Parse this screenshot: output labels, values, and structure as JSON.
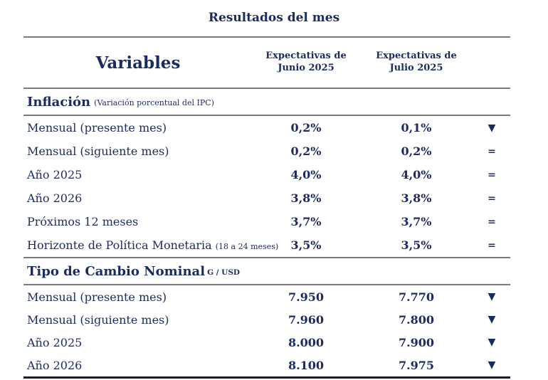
{
  "title": "Resultados del mes",
  "colors": {
    "navy": "#1c2b5f",
    "line_gray": "#7a7a7a",
    "line_dark": "#151b36"
  },
  "header": {
    "variables": "Variables",
    "junio": {
      "line1": "Expectativas de",
      "line2": "Junio 2025"
    },
    "julio": {
      "line1": "Expectativas de",
      "line2": "Julio 2025"
    }
  },
  "sections": [
    {
      "title": "Inflación",
      "subtitle": "(Variación porcentual del IPC)",
      "rows": [
        {
          "label": "Mensual (presente mes)",
          "label_small": "",
          "junio": "0,2%",
          "julio": "0,1%",
          "indicator": "▼"
        },
        {
          "label": "Mensual (siguiente mes)",
          "label_small": "",
          "junio": "0,2%",
          "julio": "0,2%",
          "indicator": "="
        },
        {
          "label": "Año 2025",
          "label_small": "",
          "junio": "4,0%",
          "julio": "4,0%",
          "indicator": "="
        },
        {
          "label": "Año 2026",
          "label_small": "",
          "junio": "3,8%",
          "julio": "3,8%",
          "indicator": "="
        },
        {
          "label": "Próximos 12 meses",
          "label_small": "",
          "junio": "3,7%",
          "julio": "3,7%",
          "indicator": "="
        },
        {
          "label": "Horizonte de Política Monetaria ",
          "label_small": "(18 a 24 meses)",
          "junio": "3,5%",
          "julio": "3,5%",
          "indicator": "="
        }
      ]
    },
    {
      "title": "Tipo de Cambio Nominal",
      "subtitle": "G / USD",
      "rows": [
        {
          "label": "Mensual (presente mes)",
          "label_small": "",
          "junio": "7.950",
          "julio": "7.770",
          "indicator": "▼"
        },
        {
          "label": "Mensual (siguiente mes)",
          "label_small": "",
          "junio": "7.960",
          "julio": "7.800",
          "indicator": "▼"
        },
        {
          "label": "Año 2025",
          "label_small": "",
          "junio": "8.000",
          "julio": "7.900",
          "indicator": "▼"
        },
        {
          "label": "Año 2026",
          "label_small": "",
          "junio": "8.100",
          "julio": "7.975",
          "indicator": "▼"
        }
      ]
    }
  ]
}
